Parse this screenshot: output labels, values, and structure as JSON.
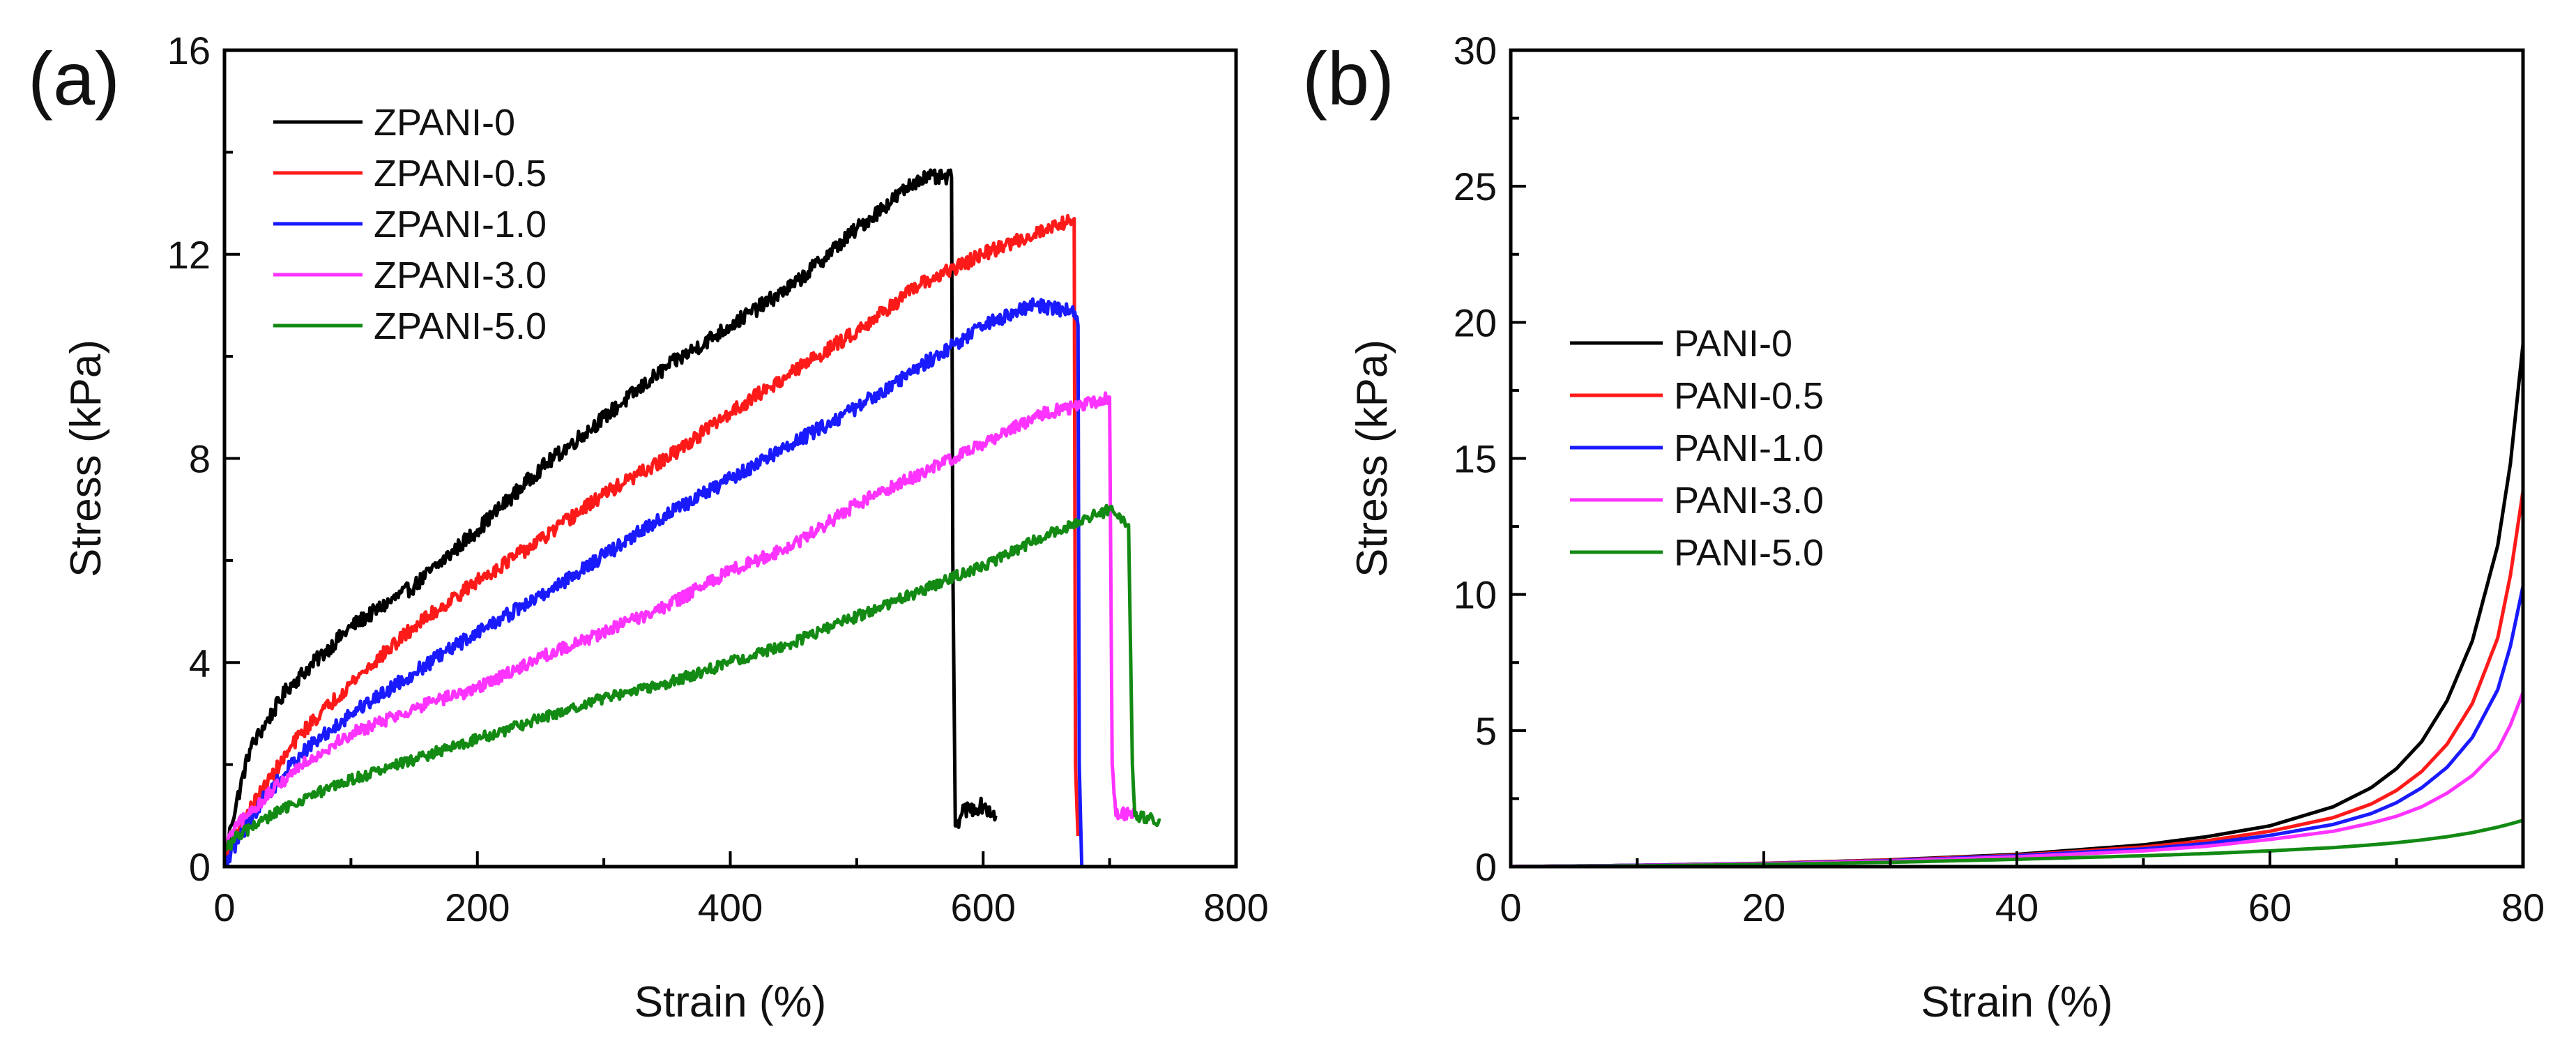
{
  "chart_data": [
    {
      "panel_label": "(a)",
      "type": "line",
      "xlabel": "Strain (%)",
      "ylabel": "Stress (kPa)",
      "xlim": [
        0,
        800
      ],
      "ylim": [
        0,
        16
      ],
      "xticks": [
        0,
        200,
        400,
        600,
        800
      ],
      "yticks": [
        0,
        4,
        8,
        12,
        16
      ],
      "grid": false,
      "legend_position": "top-left",
      "series": [
        {
          "name": "ZPANI-0",
          "color": "#000000",
          "noise": 0.3,
          "x": [
            0,
            5,
            20,
            50,
            100,
            150,
            200,
            250,
            300,
            350,
            400,
            450,
            500,
            550,
            575,
            576,
            578,
            585,
            600,
            610
          ],
          "y": [
            0,
            0.8,
            2.3,
            3.5,
            4.7,
            5.5,
            6.6,
            7.8,
            8.8,
            9.8,
            10.6,
            11.4,
            12.5,
            13.5,
            13.5,
            6.0,
            0.8,
            1.1,
            1.2,
            1.0
          ]
        },
        {
          "name": "ZPANI-0.5",
          "color": "#ff1a1a",
          "noise": 0.28,
          "x": [
            0,
            10,
            30,
            60,
            100,
            150,
            200,
            250,
            300,
            350,
            400,
            450,
            500,
            550,
            600,
            650,
            672,
            673,
            675
          ],
          "y": [
            0,
            0.7,
            1.5,
            2.6,
            3.6,
            4.7,
            5.6,
            6.4,
            7.3,
            8.0,
            8.9,
            9.7,
            10.5,
            11.4,
            12.0,
            12.5,
            12.7,
            2.0,
            0.6
          ]
        },
        {
          "name": "ZPANI-1.0",
          "color": "#1a1aff",
          "noise": 0.28,
          "x": [
            0,
            10,
            30,
            60,
            100,
            150,
            200,
            250,
            300,
            350,
            400,
            450,
            500,
            550,
            600,
            640,
            670,
            675,
            676,
            678
          ],
          "y": [
            0,
            0.5,
            1.3,
            2.2,
            3.0,
            3.8,
            4.6,
            5.3,
            6.1,
            6.9,
            7.6,
            8.3,
            9.0,
            9.8,
            10.6,
            11.0,
            10.9,
            10.6,
            2.0,
            0.0
          ]
        },
        {
          "name": "ZPANI-3.0",
          "color": "#ff33ff",
          "noise": 0.25,
          "x": [
            0,
            10,
            30,
            60,
            100,
            150,
            200,
            250,
            300,
            350,
            400,
            450,
            500,
            550,
            600,
            650,
            690,
            700,
            702,
            705,
            720
          ],
          "y": [
            0.4,
            0.8,
            1.3,
            2.0,
            2.6,
            3.1,
            3.5,
            4.1,
            4.6,
            5.1,
            5.8,
            6.3,
            7.1,
            7.7,
            8.3,
            8.9,
            9.1,
            9.2,
            2.0,
            1.0,
            1.1
          ]
        },
        {
          "name": "ZPANI-5.0",
          "color": "#138a13",
          "noise": 0.22,
          "x": [
            0,
            10,
            30,
            60,
            100,
            150,
            200,
            250,
            300,
            350,
            400,
            450,
            500,
            550,
            600,
            650,
            700,
            715,
            718,
            720,
            740
          ],
          "y": [
            0.3,
            0.6,
            0.9,
            1.3,
            1.7,
            2.1,
            2.5,
            2.9,
            3.3,
            3.6,
            4.0,
            4.4,
            4.9,
            5.4,
            5.9,
            6.5,
            7.0,
            6.7,
            2.0,
            1.0,
            0.9
          ]
        }
      ]
    },
    {
      "panel_label": "(b)",
      "type": "line",
      "xlabel": "Strain (%)",
      "ylabel": "Stress (kPa)",
      "xlim": [
        0,
        80
      ],
      "ylim": [
        0,
        30
      ],
      "xticks": [
        0,
        20,
        40,
        60,
        80
      ],
      "yticks": [
        0,
        5,
        10,
        15,
        20,
        25,
        30
      ],
      "grid": false,
      "legend_position": "left",
      "series": [
        {
          "name": "PANI-0",
          "color": "#000000",
          "noise": 0,
          "x": [
            0,
            10,
            20,
            30,
            40,
            50,
            55,
            60,
            65,
            68,
            70,
            72,
            74,
            76,
            78,
            79,
            80
          ],
          "y": [
            0,
            0.05,
            0.12,
            0.25,
            0.45,
            0.8,
            1.1,
            1.5,
            2.2,
            2.9,
            3.6,
            4.6,
            6.1,
            8.3,
            11.8,
            14.8,
            19.2
          ]
        },
        {
          "name": "PANI-0.5",
          "color": "#ff1a1a",
          "noise": 0,
          "x": [
            0,
            10,
            20,
            30,
            40,
            50,
            55,
            60,
            65,
            68,
            70,
            72,
            74,
            76,
            78,
            79,
            80
          ],
          "y": [
            0,
            0.05,
            0.12,
            0.24,
            0.42,
            0.72,
            0.95,
            1.3,
            1.8,
            2.3,
            2.8,
            3.5,
            4.5,
            6.0,
            8.4,
            10.7,
            13.8
          ]
        },
        {
          "name": "PANI-1.0",
          "color": "#1a1aff",
          "noise": 0,
          "x": [
            0,
            10,
            20,
            30,
            40,
            50,
            55,
            60,
            65,
            68,
            70,
            72,
            74,
            76,
            78,
            79,
            80
          ],
          "y": [
            0,
            0.05,
            0.11,
            0.22,
            0.4,
            0.65,
            0.85,
            1.15,
            1.55,
            1.95,
            2.35,
            2.9,
            3.65,
            4.75,
            6.5,
            8.1,
            10.3
          ]
        },
        {
          "name": "PANI-3.0",
          "color": "#ff33ff",
          "noise": 0,
          "x": [
            0,
            10,
            20,
            30,
            40,
            50,
            55,
            60,
            65,
            68,
            70,
            72,
            74,
            76,
            78,
            79,
            80
          ],
          "y": [
            0,
            0.04,
            0.1,
            0.2,
            0.36,
            0.58,
            0.75,
            1.0,
            1.3,
            1.6,
            1.85,
            2.2,
            2.7,
            3.35,
            4.3,
            5.2,
            6.4
          ]
        },
        {
          "name": "PANI-5.0",
          "color": "#138a13",
          "noise": 0,
          "x": [
            0,
            10,
            20,
            30,
            40,
            50,
            55,
            60,
            65,
            68,
            70,
            72,
            74,
            76,
            78,
            79,
            80
          ],
          "y": [
            0,
            0.03,
            0.08,
            0.16,
            0.27,
            0.4,
            0.48,
            0.58,
            0.7,
            0.8,
            0.88,
            0.98,
            1.1,
            1.25,
            1.45,
            1.57,
            1.7
          ]
        }
      ]
    }
  ]
}
